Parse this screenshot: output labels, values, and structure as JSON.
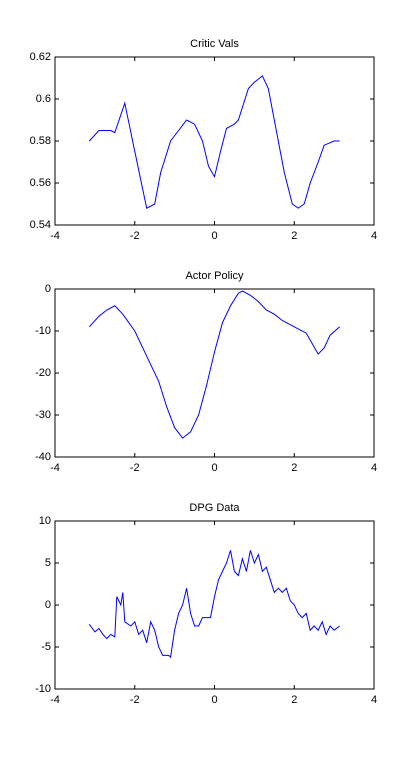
{
  "chart_data": [
    {
      "type": "line",
      "title": "Critic Vals",
      "color": "#0000ff",
      "x": [
        -3.14,
        -2.9,
        -2.6,
        -2.5,
        -2.25,
        -2.0,
        -1.7,
        -1.5,
        -1.35,
        -1.1,
        -0.9,
        -0.7,
        -0.5,
        -0.3,
        -0.15,
        0,
        0.15,
        0.3,
        0.5,
        0.6,
        0.85,
        1.0,
        1.2,
        1.35,
        1.5,
        1.75,
        1.95,
        2.1,
        2.25,
        2.4,
        2.6,
        2.75,
        3.0,
        3.14
      ],
      "values": [
        0.58,
        0.585,
        0.585,
        0.584,
        0.598,
        0.575,
        0.548,
        0.55,
        0.565,
        0.58,
        0.585,
        0.59,
        0.588,
        0.58,
        0.568,
        0.563,
        0.575,
        0.586,
        0.588,
        0.59,
        0.605,
        0.608,
        0.611,
        0.605,
        0.59,
        0.565,
        0.55,
        0.548,
        0.55,
        0.56,
        0.57,
        0.578,
        0.58,
        0.58
      ],
      "xlim": [
        -4,
        4
      ],
      "xticks": [
        -4,
        -2,
        0,
        2,
        4
      ],
      "ylim": [
        0.54,
        0.62
      ],
      "yticks": [
        0.54,
        0.56,
        0.58,
        0.6,
        0.62
      ]
    },
    {
      "type": "line",
      "title": "Actor Policy",
      "color": "#0000ff",
      "x": [
        -3.14,
        -2.9,
        -2.7,
        -2.5,
        -2.3,
        -2.0,
        -1.7,
        -1.4,
        -1.2,
        -1.0,
        -0.8,
        -0.6,
        -0.4,
        -0.2,
        0,
        0.2,
        0.4,
        0.6,
        0.7,
        0.9,
        1.1,
        1.3,
        1.5,
        1.7,
        1.9,
        2.1,
        2.3,
        2.45,
        2.6,
        2.75,
        2.9,
        3.14
      ],
      "values": [
        -9,
        -6.5,
        -5,
        -4,
        -6,
        -10,
        -16,
        -22,
        -28,
        -33,
        -35.5,
        -34,
        -30,
        -23,
        -15,
        -8,
        -4,
        -1,
        -0.5,
        -1.5,
        -3,
        -5,
        -6,
        -7.5,
        -8.5,
        -9.5,
        -10.5,
        -13,
        -15.5,
        -14,
        -11,
        -9
      ],
      "xlim": [
        -4,
        4
      ],
      "xticks": [
        -4,
        -2,
        0,
        2,
        4
      ],
      "ylim": [
        -40,
        0
      ],
      "yticks": [
        -40,
        -30,
        -20,
        -10,
        0
      ]
    },
    {
      "type": "line",
      "title": "DPG Data",
      "color": "#0000ff",
      "x": [
        -3.14,
        -3.0,
        -2.9,
        -2.8,
        -2.7,
        -2.6,
        -2.5,
        -2.45,
        -2.35,
        -2.3,
        -2.25,
        -2.1,
        -2.0,
        -1.9,
        -1.8,
        -1.7,
        -1.6,
        -1.5,
        -1.4,
        -1.3,
        -1.15,
        -1.1,
        -1.0,
        -0.9,
        -0.8,
        -0.7,
        -0.6,
        -0.5,
        -0.4,
        -0.3,
        -0.1,
        0.0,
        0.1,
        0.2,
        0.3,
        0.4,
        0.5,
        0.6,
        0.7,
        0.8,
        0.9,
        1.0,
        1.1,
        1.2,
        1.3,
        1.4,
        1.5,
        1.6,
        1.7,
        1.8,
        1.9,
        2.0,
        2.1,
        2.2,
        2.3,
        2.4,
        2.5,
        2.6,
        2.7,
        2.8,
        2.9,
        3.0,
        3.14
      ],
      "values": [
        -2.3,
        -3.2,
        -2.8,
        -3.5,
        -4,
        -3.5,
        -3.8,
        1,
        0,
        1.5,
        -2,
        -2.5,
        -2,
        -3.5,
        -3,
        -4.5,
        -2,
        -3,
        -5,
        -6,
        -6,
        -6.2,
        -3,
        -1,
        0,
        2,
        -1,
        -2.5,
        -2.5,
        -1.5,
        -1.5,
        1,
        3,
        4,
        5,
        6.5,
        4,
        3.5,
        5.5,
        4,
        6.5,
        5,
        6,
        4,
        4.5,
        3,
        1.5,
        2,
        1.5,
        2,
        0.5,
        0,
        -1,
        -1.5,
        -1,
        -3,
        -2.5,
        -3,
        -2,
        -3.5,
        -2.5,
        -3,
        -2.5
      ],
      "xlim": [
        -4,
        4
      ],
      "xticks": [
        -4,
        -2,
        0,
        2,
        4
      ],
      "ylim": [
        -10,
        10
      ],
      "yticks": [
        -10,
        -5,
        0,
        5,
        10
      ]
    }
  ]
}
